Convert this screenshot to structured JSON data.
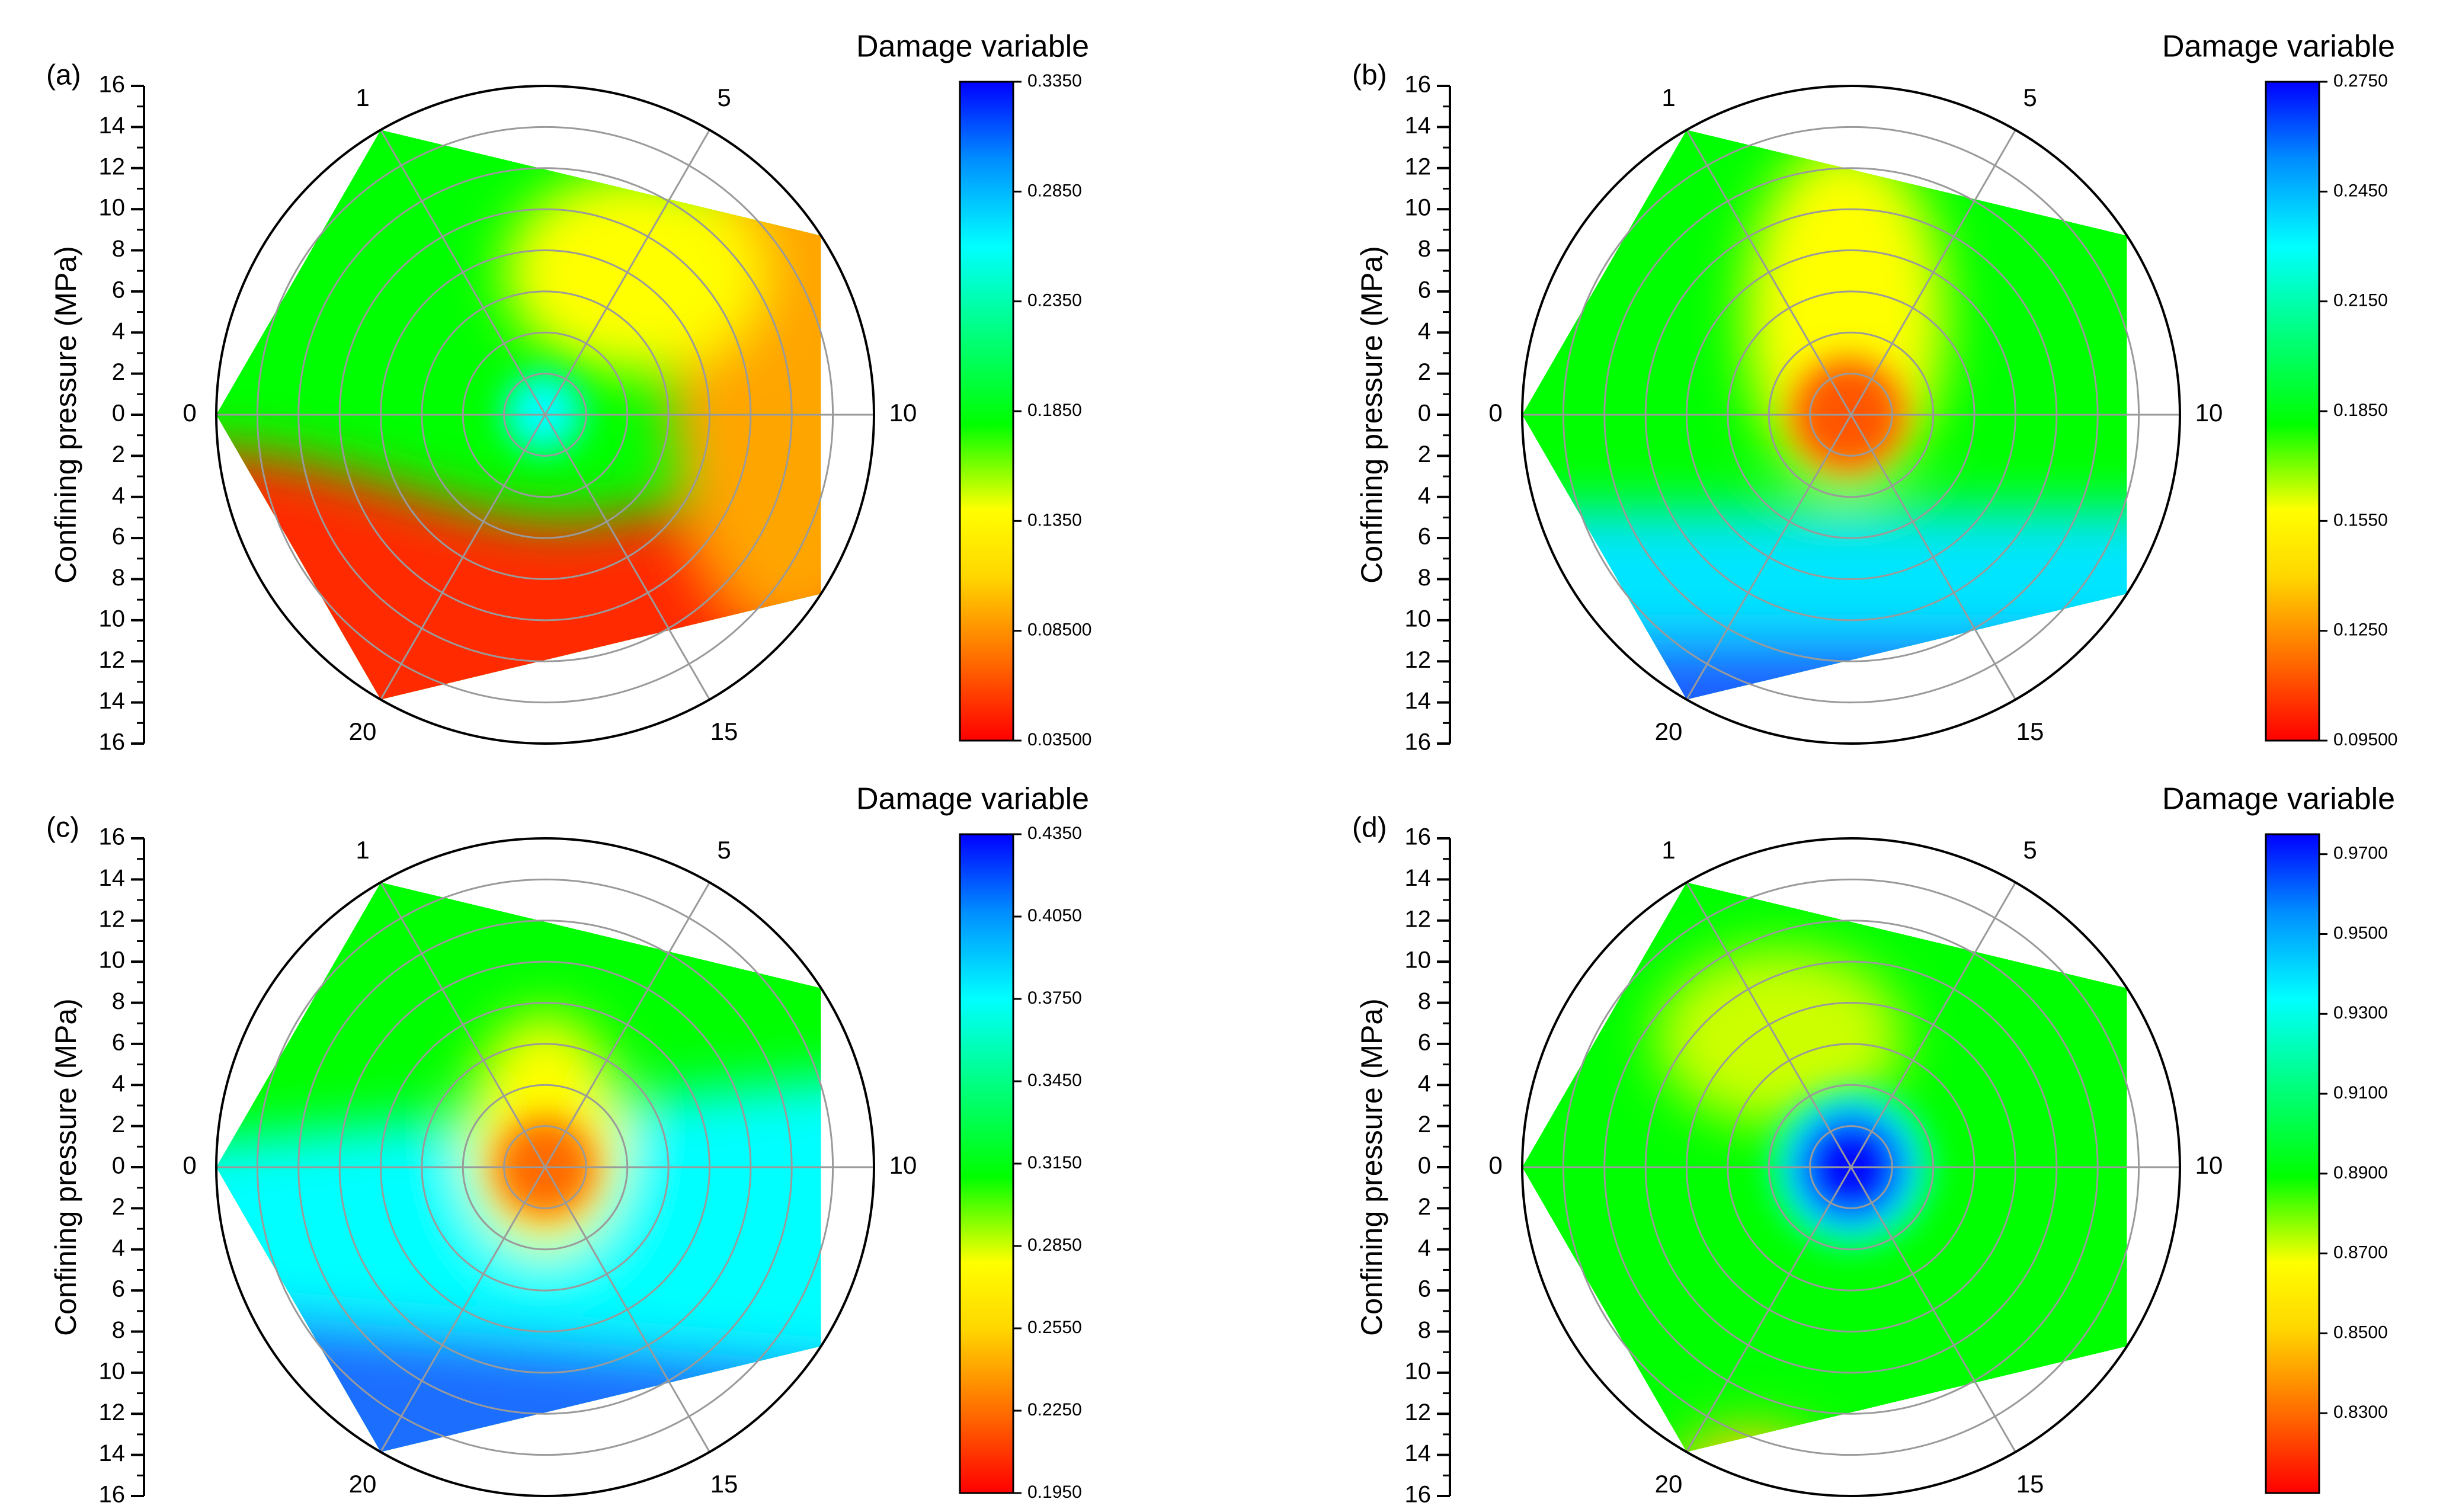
{
  "chart_data": [
    {
      "type": "heatmap",
      "subtype": "polar-contour",
      "panel_label": "(a)",
      "ylabel": "Confining pressure (MPa)",
      "radial_ticks": [
        16,
        14,
        12,
        10,
        8,
        6,
        4,
        2,
        0,
        2,
        4,
        6,
        8,
        10,
        12,
        14,
        16
      ],
      "radial_range": [
        0,
        16
      ],
      "angular_labels": [
        "0",
        "1",
        "5",
        "10",
        "15",
        "20"
      ],
      "grid": true,
      "colorbar": {
        "title": "Damage variable",
        "ticks": [
          "0.3350",
          "0.2850",
          "0.2350",
          "0.1850",
          "0.1350",
          "0.08500",
          "0.03500"
        ],
        "range": [
          0.035,
          0.335
        ],
        "colors_low_to_high": [
          "#ff0000",
          "#ff8c00",
          "#ffd700",
          "#ffff00",
          "#00ff00",
          "#00ffff",
          "#0080ff",
          "#0000ff"
        ]
      },
      "field": {
        "background": "#00ff00",
        "regions": [
          {
            "zone": "south-west/south",
            "value": 0.05,
            "color": "#ff2a00"
          },
          {
            "zone": "east",
            "value": 0.09,
            "color": "#ffa500"
          },
          {
            "zone": "north-east ring",
            "value": 0.13,
            "color": "#ffff00"
          },
          {
            "zone": "center",
            "value": 0.28,
            "color": "#00ffff"
          }
        ]
      }
    },
    {
      "type": "heatmap",
      "subtype": "polar-contour",
      "panel_label": "(b)",
      "ylabel": "Confining pressure (MPa)",
      "radial_ticks": [
        16,
        14,
        12,
        10,
        8,
        6,
        4,
        2,
        0,
        2,
        4,
        6,
        8,
        10,
        12,
        14,
        16
      ],
      "radial_range": [
        0,
        16
      ],
      "angular_labels": [
        "0",
        "1",
        "5",
        "10",
        "15",
        "20"
      ],
      "grid": true,
      "colorbar": {
        "title": "Damage variable",
        "ticks": [
          "0.2750",
          "0.2450",
          "0.2150",
          "0.1850",
          "0.1550",
          "0.1250",
          "0.09500"
        ],
        "range": [
          0.095,
          0.275
        ],
        "colors_low_to_high": [
          "#ff0000",
          "#ff8c00",
          "#ffd700",
          "#ffff00",
          "#00ff00",
          "#00ffff",
          "#0080ff",
          "#0000ff"
        ]
      },
      "field": {
        "background": "#00ff00",
        "regions": [
          {
            "zone": "south band",
            "value": 0.245,
            "color": "#00e5ff"
          },
          {
            "zone": "far south",
            "value": 0.265,
            "color": "#1e5eff"
          },
          {
            "zone": "north plume",
            "value": 0.16,
            "color": "#ffff00"
          },
          {
            "zone": "center",
            "value": 0.11,
            "color": "#ff5500"
          }
        ]
      }
    },
    {
      "type": "heatmap",
      "subtype": "polar-contour",
      "panel_label": "(c)",
      "ylabel": "Confining pressure (MPa)",
      "radial_ticks": [
        16,
        14,
        12,
        10,
        8,
        6,
        4,
        2,
        0,
        2,
        4,
        6,
        8,
        10,
        12,
        14,
        16
      ],
      "radial_range": [
        0,
        16
      ],
      "angular_labels": [
        "0",
        "1",
        "5",
        "10",
        "15",
        "20"
      ],
      "grid": true,
      "colorbar": {
        "title": "Damage variable",
        "ticks": [
          "0.4350",
          "0.4050",
          "0.3750",
          "0.3450",
          "0.3150",
          "0.2850",
          "0.2550",
          "0.2250",
          "0.1950"
        ],
        "range": [
          0.195,
          0.435
        ],
        "colors_low_to_high": [
          "#ff0000",
          "#ff8c00",
          "#ffd700",
          "#ffff00",
          "#00ff00",
          "#00ffff",
          "#0080ff",
          "#0000ff"
        ]
      },
      "field": {
        "background": "#00ff00",
        "regions": [
          {
            "zone": "south band",
            "value": 0.38,
            "color": "#00ffff"
          },
          {
            "zone": "far south-west",
            "value": 0.42,
            "color": "#1e6eff"
          },
          {
            "zone": "center",
            "value": 0.22,
            "color": "#ff6a00"
          }
        ]
      }
    },
    {
      "type": "heatmap",
      "subtype": "polar-contour",
      "panel_label": "(d)",
      "ylabel": "Confining pressure (MPa)",
      "radial_ticks": [
        16,
        14,
        12,
        10,
        8,
        6,
        4,
        2,
        0,
        2,
        4,
        6,
        8,
        10,
        12,
        14,
        16
      ],
      "radial_range": [
        0,
        16
      ],
      "angular_labels": [
        "0",
        "1",
        "5",
        "10",
        "15",
        "20"
      ],
      "grid": true,
      "colorbar": {
        "title": "Damage variable",
        "ticks": [
          "0.9700",
          "0.9500",
          "0.9300",
          "0.9100",
          "0.8900",
          "0.8700",
          "0.8500",
          "0.8300"
        ],
        "range": [
          0.81,
          0.975
        ],
        "colors_low_to_high": [
          "#ff0000",
          "#ff8c00",
          "#ffd700",
          "#ffff00",
          "#00ff00",
          "#00ffff",
          "#0080ff",
          "#0000ff"
        ]
      },
      "field": {
        "background": "#00ff00",
        "regions": [
          {
            "zone": "north plume",
            "value": 0.86,
            "color": "#ccff00"
          },
          {
            "zone": "south-west tip",
            "value": 0.85,
            "color": "#ffd000"
          },
          {
            "zone": "center",
            "value": 0.97,
            "color": "#0010ff"
          }
        ]
      }
    }
  ]
}
